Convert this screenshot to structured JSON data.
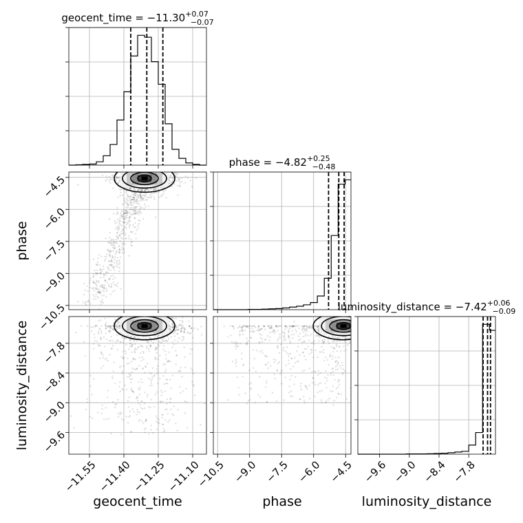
{
  "chart_data": {
    "type": "corner",
    "parameters": [
      "geocent_time",
      "phase",
      "luminosity_distance"
    ],
    "titles": [
      {
        "param": "geocent_time",
        "text": "geocent_time = −11.30",
        "plus": "+0.07",
        "minus": "−0.07"
      },
      {
        "param": "phase",
        "text": "phase = −4.82",
        "plus": "+0.25",
        "minus": "−0.48"
      },
      {
        "param": "luminosity_distance",
        "text": "luminosity_distance = −7.42",
        "plus": "+0.06",
        "minus": "−0.09"
      }
    ],
    "axis_labels": {
      "x": [
        "geocent_time",
        "phase",
        "luminosity_distance"
      ],
      "y": [
        "phase",
        "luminosity_distance"
      ]
    },
    "ranges": {
      "geocent_time": [
        -11.64,
        -11.04
      ],
      "phase": [
        -10.7,
        -4.25
      ],
      "luminosity_distance": [
        -10.04,
        -7.26
      ]
    },
    "ticks": {
      "geocent_time": {
        "values": [
          -11.55,
          -11.4,
          -11.25,
          -11.1
        ],
        "labels": [
          "−11.55",
          "−11.40",
          "−11.25",
          "−11.10"
        ]
      },
      "phase": {
        "values": [
          -10.5,
          -9.0,
          -7.5,
          -6.0,
          -4.5
        ],
        "labels": [
          "−10.5",
          "−9.0",
          "−7.5",
          "−6.0",
          "−4.5"
        ]
      },
      "luminosity_distance": {
        "values": [
          -9.6,
          -9.0,
          -8.4,
          -7.8
        ],
        "labels": [
          "−9.6",
          "−9.0",
          "−8.4",
          "−7.8"
        ]
      }
    },
    "quantiles": {
      "geocent_time": [
        -11.37,
        -11.3,
        -11.23
      ],
      "phase": [
        -5.3,
        -4.82,
        -4.57
      ],
      "luminosity_distance": [
        -7.51,
        -7.42,
        -7.36
      ]
    },
    "histograms": {
      "geocent_time": {
        "edges": [
          -11.64,
          -11.61,
          -11.58,
          -11.55,
          -11.52,
          -11.49,
          -11.46,
          -11.43,
          -11.4,
          -11.37,
          -11.34,
          -11.31,
          -11.28,
          -11.25,
          -11.22,
          -11.19,
          -11.16,
          -11.13,
          -11.1,
          -11.07,
          -11.04
        ],
        "counts": [
          0,
          1,
          2,
          3,
          9,
          25,
          55,
          120,
          195,
          290,
          345,
          340,
          275,
          215,
          110,
          42,
          18,
          6,
          2,
          0
        ]
      },
      "phase": {
        "edges": [
          -10.7,
          -10.375,
          -10.05,
          -9.725,
          -9.4,
          -9.075,
          -8.75,
          -8.425,
          -8.1,
          -7.775,
          -7.45,
          -7.125,
          -6.8,
          -6.475,
          -6.15,
          -5.825,
          -5.5,
          -5.175,
          -4.85,
          -4.525,
          -4.25
        ],
        "counts": [
          0,
          0,
          0,
          0,
          0,
          1,
          1,
          2,
          3,
          4,
          6,
          9,
          12,
          17,
          25,
          48,
          110,
          260,
          440,
          455
        ]
      },
      "luminosity_distance": {
        "edges": [
          -10.04,
          -9.9,
          -9.76,
          -9.62,
          -9.48,
          -9.34,
          -9.2,
          -9.06,
          -8.92,
          -8.78,
          -8.64,
          -8.5,
          -8.36,
          -8.22,
          -8.08,
          -7.94,
          -7.8,
          -7.66,
          -7.52,
          -7.38,
          -7.26
        ],
        "counts": [
          0,
          0,
          0,
          0,
          0,
          0,
          0,
          1,
          1,
          1,
          2,
          3,
          4,
          6,
          9,
          12,
          38,
          90,
          540,
          515
        ]
      }
    },
    "density_2d": [
      {
        "x": "geocent_time",
        "y": "phase",
        "peak": [
          -11.31,
          -4.55
        ],
        "spread": [
          0.045,
          0.25
        ]
      },
      {
        "x": "geocent_time",
        "y": "luminosity_distance",
        "peak": [
          -11.31,
          -7.45
        ],
        "spread": [
          0.045,
          0.08
        ]
      },
      {
        "x": "phase",
        "y": "luminosity_distance",
        "peak": [
          -4.6,
          -7.45
        ],
        "spread": [
          0.3,
          0.08
        ]
      }
    ],
    "grid": true
  }
}
